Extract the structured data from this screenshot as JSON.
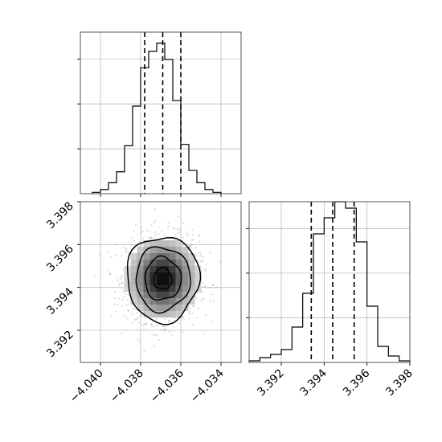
{
  "colors": {
    "hist": "#000000",
    "grid": "#bdbdbd",
    "points": "#9a9a9a",
    "density_dark": "#000000"
  },
  "chart_data": [
    {
      "type": "bar",
      "panel": "histogram-param1",
      "title": "",
      "xlabel": "",
      "ylabel": "",
      "grid": true,
      "x_range": [
        -4.041,
        -4.033
      ],
      "bins_edges": [
        -4.0404,
        -4.04,
        -4.0396,
        -4.0392,
        -4.0388,
        -4.0384,
        -4.038,
        -4.0376,
        -4.0372,
        -4.0368,
        -4.0364,
        -4.036,
        -4.0356,
        -4.0352,
        -4.0348,
        -4.0344,
        -4.034
      ],
      "counts": [
        1,
        3,
        8,
        16,
        35,
        64,
        92,
        104,
        110,
        98,
        68,
        36,
        17,
        8,
        3,
        1
      ],
      "ylim": [
        0,
        118
      ],
      "quantiles": [
        -4.0378,
        -4.0369,
        -4.036
      ]
    },
    {
      "type": "scatter",
      "panel": "joint-param1-param2",
      "title": "",
      "xlabel": "",
      "ylabel": "",
      "grid": true,
      "xlim": [
        -4.041,
        -4.033
      ],
      "ylim": [
        3.3905,
        3.398
      ],
      "x_ticks": [
        "−4.040",
        "−4.038",
        "−4.036",
        "−4.034"
      ],
      "x_tick_values": [
        -4.04,
        -4.038,
        -4.036,
        -4.034
      ],
      "y_ticks": [
        "3.392",
        "3.394",
        "3.396",
        "3.398"
      ],
      "y_tick_values": [
        3.392,
        3.394,
        3.396,
        3.398
      ],
      "center": [
        -4.0369,
        3.3944
      ],
      "sigma": [
        0.0009,
        0.001
      ],
      "n_points_shown": 1600,
      "contour_levels": [
        "0.5 sigma",
        "1 sigma",
        "1.5 sigma",
        "2 sigma"
      ]
    },
    {
      "type": "bar",
      "panel": "histogram-param2",
      "title": "",
      "xlabel": "",
      "ylabel": "",
      "grid": true,
      "x_range": [
        3.3905,
        3.398
      ],
      "x_ticks": [
        "3.392",
        "3.394",
        "3.396",
        "3.398"
      ],
      "x_tick_values": [
        3.392,
        3.394,
        3.396,
        3.398
      ],
      "bins_edges": [
        3.3905,
        3.391,
        3.3915,
        3.392,
        3.3925,
        3.393,
        3.3935,
        3.394,
        3.3945,
        3.395,
        3.3955,
        3.396,
        3.3965,
        3.397,
        3.3975,
        3.398
      ],
      "counts": [
        1,
        3,
        5,
        8,
        22,
        43,
        80,
        90,
        100,
        96,
        75,
        35,
        10,
        4,
        1
      ],
      "ylim": [
        0,
        100
      ],
      "quantiles": [
        3.3934,
        3.3944,
        3.3954
      ]
    }
  ]
}
